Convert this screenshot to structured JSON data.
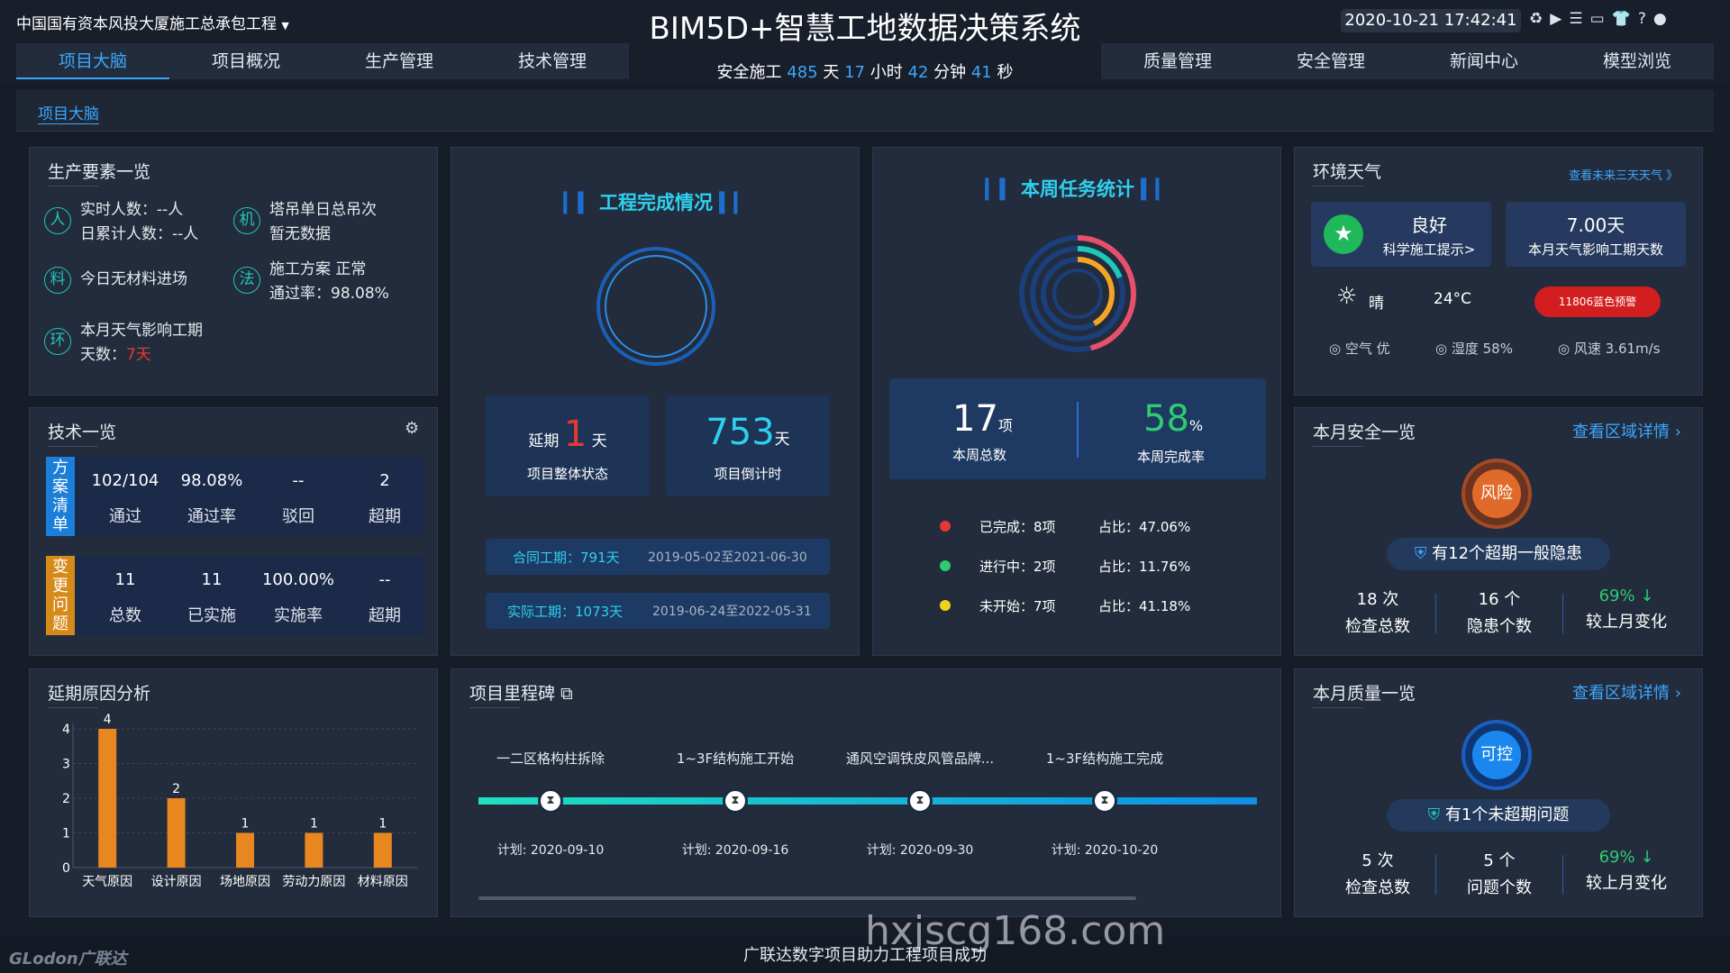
{
  "header": {
    "project_name": "中国国有资本风投大厦施工总承包工程",
    "title": "BIM5D+智慧工地数据决策系统",
    "datetime": "2020-10-21 17:42:41",
    "safe_prefix": "安全施工",
    "safe_days": "485",
    "safe_days_unit": "天",
    "safe_hours": "17",
    "safe_hours_unit": "小时",
    "safe_min": "42",
    "safe_min_unit": "分钟",
    "safe_sec": "41",
    "safe_sec_unit": "秒"
  },
  "nav_left": [
    "项目大脑",
    "项目概况",
    "生产管理",
    "技术管理"
  ],
  "nav_right": [
    "质量管理",
    "安全管理",
    "新闻中心",
    "模型浏览"
  ],
  "breadcrumb": "项目大脑",
  "production": {
    "title": "生产要素一览",
    "people_icon": "人",
    "people_line1": "实时人数：--人",
    "people_line2": "日累计人数：--人",
    "machine_icon": "机",
    "machine_line1": "塔吊单日总吊次",
    "machine_line2": "暂无数据",
    "material_icon": "料",
    "material_line1": "今日无材料进场",
    "method_icon": "法",
    "method_line1": "施工方案  正常",
    "method_line2": "通过率：98.08%",
    "env_icon": "环",
    "env_line1": "本月天气影响工期",
    "env_line2": "天数：",
    "env_days": "7天"
  },
  "tech": {
    "title": "技术一览",
    "row1_tag": "方案清单",
    "row1": [
      {
        "v": "102/104",
        "l": "通过"
      },
      {
        "v": "98.08%",
        "l": "通过率"
      },
      {
        "v": "--",
        "l": "驳回"
      },
      {
        "v": "2",
        "l": "超期"
      }
    ],
    "row2_tag": "变更问题",
    "row2": [
      {
        "v": "11",
        "l": "总数"
      },
      {
        "v": "11",
        "l": "已实施"
      },
      {
        "v": "100.00%",
        "l": "实施率"
      },
      {
        "v": "--",
        "l": "超期"
      }
    ]
  },
  "completion": {
    "title": "工程完成情况",
    "delay_prefix": "延期",
    "delay_days": "1",
    "delay_unit": "天",
    "delay_label": "项目整体状态",
    "countdown": "753",
    "countdown_unit": "天",
    "countdown_label": "项目倒计时",
    "contract_label": "合同工期：791天",
    "contract_range": "2019-05-02至2021-06-30",
    "actual_label": "实际工期：1073天",
    "actual_range": "2019-06-24至2022-05-31",
    "progress": 0.93
  },
  "tasks": {
    "title": "本周任务统计",
    "total": "17",
    "total_unit": "项",
    "total_label": "本周总数",
    "rate": "58",
    "rate_unit": "%",
    "rate_label": "本周完成率",
    "items": [
      {
        "label": "已完成：8项",
        "ratio": "占比：47.06%",
        "color": "#e53935"
      },
      {
        "label": "进行中：2项",
        "ratio": "占比：11.76%",
        "color": "#2ecc71"
      },
      {
        "label": "未开始：7项",
        "ratio": "占比：41.18%",
        "color": "#f1d21b"
      }
    ]
  },
  "weather": {
    "title": "环境天气",
    "forecast_link": "查看未来三天天气 》",
    "quality": "良好",
    "tip": "科学施工提示>",
    "days": "7.00天",
    "days_label": "本月天气影响工期天数",
    "condition": "晴",
    "temp": "24°C",
    "alert": "11806蓝色预警",
    "air": "空气 优",
    "humidity": "湿度 58%",
    "wind": "风速 3.61m/s"
  },
  "safety": {
    "title": "本月安全一览",
    "link": "查看区域详情 ›",
    "badge": "风险",
    "notice": "有12个超期一般隐患",
    "stats": [
      {
        "v": "18 次",
        "l": "检查总数"
      },
      {
        "v": "16 个",
        "l": "隐患个数"
      },
      {
        "v": "69% ↓",
        "l": "较上月变化"
      }
    ]
  },
  "quality": {
    "title": "本月质量一览",
    "link": "查看区域详情 ›",
    "badge": "可控",
    "notice": "有1个未超期问题",
    "stats": [
      {
        "v": "5 次",
        "l": "检查总数"
      },
      {
        "v": "5 个",
        "l": "问题个数"
      },
      {
        "v": "69% ↓",
        "l": "较上月变化"
      }
    ]
  },
  "delay": {
    "title": "延期原因分析"
  },
  "chart_data": {
    "type": "bar",
    "categories": [
      "天气原因",
      "设计原因",
      "场地原因",
      "劳动力原因",
      "材料原因"
    ],
    "values": [
      4,
      2,
      1,
      1,
      1
    ],
    "ylim": [
      0,
      4
    ],
    "yticks": [
      0,
      1,
      2,
      3,
      4
    ],
    "grid": true
  },
  "milestone": {
    "title": "项目里程碑",
    "items": [
      {
        "name": "一二区格构柱拆除",
        "plan": "计划:",
        "date": "2020-09-10"
      },
      {
        "name": "1~3F结构施工开始",
        "plan": "计划:",
        "date": "2020-09-16"
      },
      {
        "name": "通风空调铁皮风管品牌...",
        "plan": "计划:",
        "date": "2020-09-30"
      },
      {
        "name": "1~3F结构施工完成",
        "plan": "计划:",
        "date": "2020-10-20"
      }
    ]
  },
  "footer": {
    "logo": "GLodon广联达",
    "slogan": "广联达数字项目助力工程项目成功",
    "watermark": "hxjscg168.com"
  },
  "colors": {
    "accent": "#3ba7ff",
    "teal": "#1fc7b9",
    "orange": "#e8861f",
    "red": "#e53935"
  }
}
